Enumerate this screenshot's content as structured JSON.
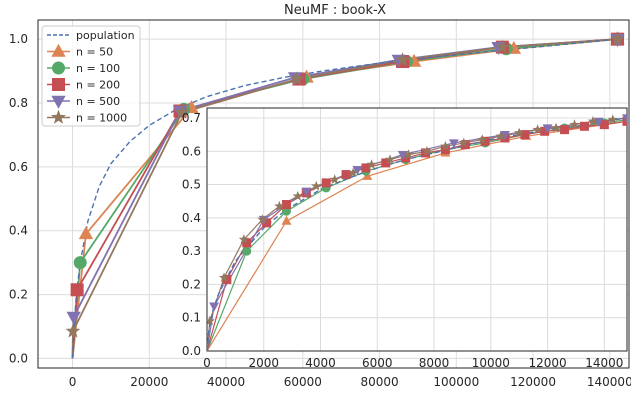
{
  "chart_data": [
    {
      "type": "line",
      "title": "NeuMF : book-X",
      "xlabel": "",
      "ylabel": "",
      "xlim": [
        -9000,
        145000
      ],
      "ylim": [
        -0.03,
        1.06
      ],
      "xticks": [
        0,
        20000,
        40000,
        60000,
        80000,
        100000,
        120000,
        140000
      ],
      "xtick_labels": [
        "0",
        "20000",
        "40000",
        "60000",
        "80000",
        "100000",
        "120000",
        "140000"
      ],
      "yticks": [
        0.0,
        0.2,
        0.4,
        0.6,
        0.8,
        1.0
      ],
      "ytick_labels": [
        "0.0",
        "0.2",
        "0.4",
        "0.6",
        "0.8",
        "1.0"
      ],
      "grid": true,
      "legend_placement": "top-left",
      "population": {
        "name": "population",
        "color": "#4c72b0",
        "x": [
          0,
          500,
          1000,
          2000,
          4000,
          7000,
          10000,
          15000,
          20000,
          27000,
          35000,
          45000,
          55000,
          65000,
          80000,
          95000,
          110000,
          125000,
          142000
        ],
        "y": [
          0.0,
          0.12,
          0.2,
          0.3,
          0.43,
          0.54,
          0.61,
          0.68,
          0.73,
          0.78,
          0.82,
          0.855,
          0.88,
          0.9,
          0.925,
          0.945,
          0.963,
          0.98,
          1.0
        ]
      },
      "series": [
        {
          "name": "n = 50",
          "color": "#dd8452",
          "marker": "triangle-up",
          "x": [
            0,
            3500,
            31000,
            61000,
            89000,
            115000,
            142000
          ],
          "y": [
            0.0,
            0.39,
            0.785,
            0.88,
            0.93,
            0.97,
            1.0
          ]
        },
        {
          "name": "n = 100",
          "color": "#55a868",
          "marker": "circle",
          "x": [
            0,
            2000,
            29000,
            60000,
            87000,
            113000,
            142000
          ],
          "y": [
            0.0,
            0.3,
            0.78,
            0.875,
            0.93,
            0.97,
            1.0
          ]
        },
        {
          "name": "n = 200",
          "color": "#c44e52",
          "marker": "square",
          "x": [
            0,
            1200,
            28000,
            59000,
            86000,
            112000,
            142000
          ],
          "y": [
            0.0,
            0.215,
            0.775,
            0.875,
            0.93,
            0.975,
            1.0
          ]
        },
        {
          "name": "n = 500",
          "color": "#8172b2",
          "marker": "triangle-down",
          "x": [
            0,
            300,
            28000,
            58000,
            85000,
            111000,
            142000
          ],
          "y": [
            0.0,
            0.13,
            0.775,
            0.88,
            0.935,
            0.975,
            1.0
          ]
        },
        {
          "name": "n = 1000",
          "color": "#937860",
          "marker": "star",
          "x": [
            0,
            100,
            28500,
            58500,
            86000,
            112000,
            142000
          ],
          "y": [
            0.0,
            0.085,
            0.77,
            0.875,
            0.935,
            0.975,
            1.0
          ]
        }
      ]
    },
    {
      "type": "line",
      "title": "",
      "xlabel": "",
      "ylabel": "",
      "xlim": [
        0,
        14800
      ],
      "ylim": [
        0.0,
        0.73
      ],
      "xticks": [
        0,
        2000,
        4000,
        6000,
        8000,
        10000,
        12000,
        14000
      ],
      "xtick_labels": [
        "0",
        "2000",
        "4000",
        "6000",
        "8000",
        "10000",
        "12000",
        "14000"
      ],
      "yticks": [
        0.0,
        0.1,
        0.2,
        0.3,
        0.4,
        0.5,
        0.6,
        0.7
      ],
      "ytick_labels": [
        "0.0",
        "0.1",
        "0.2",
        "0.3",
        "0.4",
        "0.5",
        "0.6",
        "0.7"
      ],
      "grid": true,
      "population": {
        "name": "population",
        "color": "#4c72b0",
        "x": [
          0,
          50,
          100,
          200,
          400,
          700,
          1000,
          1500,
          2000,
          2500,
          3000,
          4000,
          5000,
          6000,
          7000,
          8000,
          9000,
          10000,
          11000,
          12000,
          13000,
          14000,
          14800
        ],
        "y": [
          0.0,
          0.05,
          0.08,
          0.12,
          0.17,
          0.22,
          0.27,
          0.32,
          0.37,
          0.405,
          0.435,
          0.485,
          0.52,
          0.55,
          0.575,
          0.595,
          0.615,
          0.635,
          0.65,
          0.665,
          0.675,
          0.69,
          0.7
        ]
      },
      "series": [
        {
          "name": "n = 50",
          "color": "#dd8452",
          "marker": "triangle-up",
          "x": [
            0,
            2800,
            5650,
            8400,
            11250,
            14000,
            14800
          ],
          "y": [
            0.0,
            0.39,
            0.525,
            0.595,
            0.645,
            0.68,
            0.69
          ]
        },
        {
          "name": "n = 100",
          "color": "#55a868",
          "marker": "circle",
          "x": [
            0,
            1400,
            2800,
            4200,
            5600,
            7000,
            8400,
            9800,
            11200,
            12600,
            14000,
            14800
          ],
          "y": [
            0.0,
            0.3,
            0.42,
            0.49,
            0.54,
            0.575,
            0.605,
            0.625,
            0.65,
            0.67,
            0.685,
            0.695
          ]
        },
        {
          "name": "n = 200",
          "color": "#c44e52",
          "marker": "square",
          "x": [
            0,
            700,
            1400,
            2100,
            2800,
            3500,
            4200,
            4900,
            5600,
            6300,
            7000,
            7700,
            8400,
            9100,
            9800,
            10500,
            11200,
            11900,
            12600,
            13300,
            14000,
            14800
          ],
          "y": [
            0.0,
            0.215,
            0.325,
            0.385,
            0.44,
            0.475,
            0.505,
            0.53,
            0.55,
            0.565,
            0.58,
            0.595,
            0.605,
            0.62,
            0.63,
            0.64,
            0.65,
            0.66,
            0.665,
            0.675,
            0.68,
            0.69
          ]
        },
        {
          "name": "n = 500",
          "color": "#8172b2",
          "marker": "triangle-down",
          "x": [
            0,
            250,
            2000,
            3500,
            5300,
            6900,
            8700,
            10500,
            12000,
            13800,
            14800
          ],
          "y": [
            0.0,
            0.135,
            0.395,
            0.48,
            0.545,
            0.59,
            0.625,
            0.65,
            0.67,
            0.69,
            0.7
          ]
        },
        {
          "name": "n = 1000",
          "color": "#937860",
          "marker": "star",
          "x": [
            0,
            100,
            600,
            1300,
            1950,
            2550,
            3200,
            3850,
            4500,
            5150,
            5800,
            6450,
            7100,
            7750,
            8400,
            9050,
            9700,
            10350,
            11000,
            11650,
            12300,
            12950,
            13600,
            14300
          ],
          "y": [
            0.0,
            0.09,
            0.22,
            0.335,
            0.395,
            0.435,
            0.465,
            0.495,
            0.515,
            0.535,
            0.56,
            0.575,
            0.59,
            0.6,
            0.615,
            0.625,
            0.635,
            0.645,
            0.655,
            0.665,
            0.67,
            0.68,
            0.69,
            0.695
          ]
        }
      ]
    }
  ]
}
